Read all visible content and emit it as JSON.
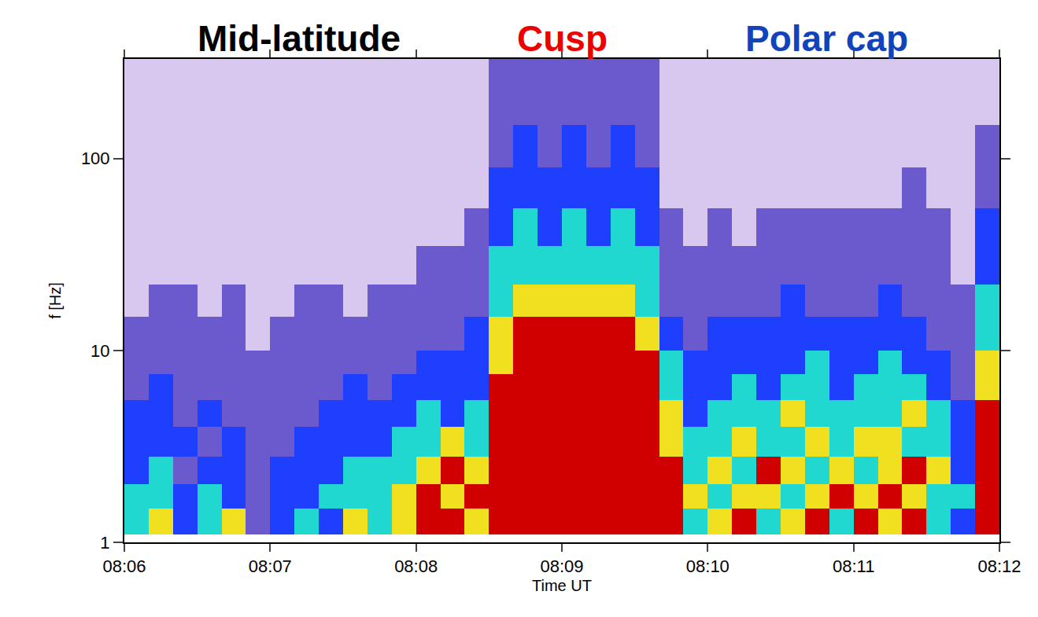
{
  "chart_data": {
    "type": "heatmap",
    "x_label": "Time UT",
    "y_label": "f [Hz]",
    "log": "y",
    "grid": false,
    "xlim": [
      29160,
      29520
    ],
    "xticks": [
      {
        "value": 29160,
        "label": "08:06"
      },
      {
        "value": 29220,
        "label": "08:07"
      },
      {
        "value": 29280,
        "label": "08:08"
      },
      {
        "value": 29340,
        "label": "08:09"
      },
      {
        "value": 29400,
        "label": "08:10"
      },
      {
        "value": 29460,
        "label": "08:11"
      },
      {
        "value": 29520,
        "label": "08:12"
      }
    ],
    "ylim": [
      1,
      330
    ],
    "yticks": [
      1,
      10,
      100
    ],
    "annotations": [
      {
        "text": "Mid-latitude",
        "x": 29232,
        "color": "#000000"
      },
      {
        "text": "Cusp",
        "x": 29340,
        "color": "#ee0000"
      },
      {
        "text": "Polar cap",
        "x": 29449,
        "color": "#1144bb"
      }
    ],
    "color_range": [
      0,
      6
    ],
    "colors": [
      "#ffffff",
      "#d8c8f0",
      "#6a5acd",
      "#1f3fff",
      "#20d8d0",
      "#f0e020",
      "#d00000"
    ],
    "x_edges": [
      29160,
      29170,
      29180,
      29190,
      29200,
      29210,
      29220,
      29230,
      29240,
      29250,
      29260,
      29270,
      29280,
      29290,
      29300,
      29310,
      29320,
      29330,
      29340,
      29350,
      29360,
      29370,
      29380,
      29390,
      29400,
      29410,
      29420,
      29430,
      29440,
      29450,
      29460,
      29470,
      29480,
      29490,
      29500,
      29510,
      29520
    ],
    "y_edges": [
      1.1,
      1.5,
      2,
      2.8,
      4,
      5.5,
      7.5,
      10,
      15,
      22,
      35,
      55,
      90,
      150,
      330
    ],
    "z": [
      [
        4,
        5,
        3,
        4,
        5,
        2,
        3,
        4,
        3,
        5,
        4,
        5,
        6,
        6,
        5,
        6,
        6,
        6,
        6,
        6,
        6,
        6,
        6,
        4,
        5,
        6,
        4,
        5,
        6,
        4,
        6,
        5,
        6,
        4,
        3,
        6
      ],
      [
        4,
        4,
        3,
        4,
        3,
        2,
        3,
        3,
        4,
        4,
        4,
        5,
        6,
        5,
        6,
        6,
        6,
        6,
        6,
        6,
        6,
        6,
        6,
        5,
        4,
        5,
        5,
        4,
        5,
        6,
        5,
        6,
        5,
        4,
        4,
        6
      ],
      [
        3,
        4,
        2,
        3,
        3,
        2,
        3,
        3,
        3,
        4,
        4,
        4,
        5,
        6,
        5,
        6,
        6,
        6,
        6,
        6,
        6,
        6,
        6,
        4,
        5,
        4,
        6,
        5,
        4,
        5,
        4,
        5,
        6,
        5,
        3,
        6
      ],
      [
        3,
        3,
        3,
        2,
        3,
        2,
        2,
        3,
        3,
        3,
        3,
        4,
        4,
        5,
        4,
        6,
        6,
        6,
        6,
        6,
        6,
        6,
        5,
        4,
        4,
        5,
        4,
        4,
        5,
        4,
        5,
        5,
        4,
        4,
        3,
        6
      ],
      [
        3,
        3,
        2,
        3,
        2,
        2,
        2,
        2,
        3,
        3,
        3,
        3,
        4,
        3,
        4,
        6,
        6,
        6,
        6,
        6,
        6,
        6,
        5,
        3,
        4,
        4,
        4,
        5,
        4,
        4,
        4,
        4,
        5,
        4,
        3,
        6
      ],
      [
        2,
        3,
        2,
        2,
        2,
        2,
        2,
        2,
        2,
        3,
        2,
        3,
        3,
        3,
        3,
        6,
        6,
        6,
        6,
        6,
        6,
        6,
        4,
        3,
        3,
        4,
        3,
        4,
        4,
        3,
        4,
        4,
        4,
        3,
        2,
        5
      ],
      [
        2,
        2,
        2,
        2,
        2,
        2,
        2,
        2,
        2,
        2,
        2,
        2,
        3,
        3,
        3,
        5,
        6,
        6,
        6,
        6,
        6,
        6,
        4,
        3,
        3,
        3,
        3,
        3,
        4,
        3,
        3,
        4,
        3,
        3,
        2,
        5
      ],
      [
        2,
        2,
        2,
        2,
        2,
        1,
        2,
        2,
        2,
        2,
        2,
        2,
        2,
        2,
        3,
        5,
        6,
        6,
        6,
        6,
        6,
        5,
        3,
        2,
        3,
        3,
        3,
        3,
        3,
        3,
        3,
        3,
        3,
        2,
        2,
        4
      ],
      [
        1,
        2,
        2,
        1,
        2,
        1,
        1,
        2,
        2,
        1,
        2,
        2,
        2,
        2,
        2,
        4,
        5,
        5,
        5,
        5,
        5,
        4,
        2,
        2,
        2,
        2,
        2,
        3,
        2,
        2,
        2,
        3,
        2,
        2,
        2,
        4
      ],
      [
        1,
        1,
        1,
        1,
        1,
        1,
        1,
        1,
        1,
        1,
        1,
        1,
        2,
        2,
        2,
        4,
        4,
        4,
        4,
        4,
        4,
        4,
        2,
        2,
        2,
        2,
        2,
        2,
        2,
        2,
        2,
        2,
        2,
        2,
        1,
        3
      ],
      [
        1,
        1,
        1,
        1,
        1,
        1,
        1,
        1,
        1,
        1,
        1,
        1,
        1,
        1,
        2,
        3,
        4,
        3,
        4,
        3,
        4,
        3,
        2,
        1,
        2,
        1,
        2,
        2,
        2,
        2,
        2,
        2,
        2,
        2,
        1,
        3
      ],
      [
        1,
        1,
        1,
        1,
        1,
        1,
        1,
        1,
        1,
        1,
        1,
        1,
        1,
        1,
        1,
        3,
        3,
        3,
        3,
        3,
        3,
        3,
        1,
        1,
        1,
        1,
        1,
        1,
        1,
        1,
        1,
        1,
        2,
        1,
        1,
        2
      ],
      [
        1,
        1,
        1,
        1,
        1,
        1,
        1,
        1,
        1,
        1,
        1,
        1,
        1,
        1,
        1,
        2,
        3,
        2,
        3,
        2,
        3,
        2,
        1,
        1,
        1,
        1,
        1,
        1,
        1,
        1,
        1,
        1,
        1,
        1,
        1,
        2
      ],
      [
        1,
        1,
        1,
        1,
        1,
        1,
        1,
        1,
        1,
        1,
        1,
        1,
        1,
        1,
        1,
        2,
        2,
        2,
        2,
        2,
        2,
        2,
        1,
        1,
        1,
        1,
        1,
        1,
        1,
        1,
        1,
        1,
        1,
        1,
        1,
        1
      ]
    ]
  }
}
